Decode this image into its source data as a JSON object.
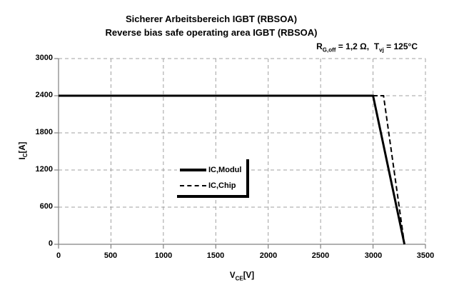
{
  "chart_data": {
    "type": "line",
    "title": "Sicherer Arbeitsbereich IGBT (RBSOA)",
    "subtitle": "Reverse bias safe operating area IGBT (RBSOA)",
    "annotation": "R G,off = 1,2 Ω,  T vj = 125°C",
    "xlabel": {
      "base": "V",
      "sub": "CE",
      "unit": "[V]"
    },
    "ylabel": {
      "base": "I",
      "sub": "C",
      "unit": "[A]"
    },
    "xlim": [
      0,
      3500
    ],
    "ylim": [
      0,
      3000
    ],
    "x_ticks": [
      0,
      500,
      1000,
      1500,
      2000,
      2500,
      3000,
      3500
    ],
    "y_ticks": [
      0,
      600,
      1200,
      1800,
      2400,
      3000
    ],
    "grid": "dashed",
    "legend_position": "center",
    "series": [
      {
        "name": "IC,Modul",
        "line_style": "solid",
        "line_width": 3,
        "color": "#000000",
        "points": [
          [
            0,
            2400
          ],
          [
            3000,
            2400
          ],
          [
            3300,
            0
          ]
        ]
      },
      {
        "name": "IC,Chip",
        "line_style": "dashed",
        "line_width": 2,
        "color": "#000000",
        "points": [
          [
            0,
            2400
          ],
          [
            3100,
            2400
          ],
          [
            3300,
            0
          ]
        ]
      }
    ]
  },
  "conditions": {
    "rg": {
      "base": "R",
      "sub": "G,off"
    },
    "rg_value": " = 1,2 ",
    "omega": "Ω",
    "sep": ",  ",
    "tvj": {
      "base": "T",
      "sub": "vj"
    },
    "tvj_value": " = 125°C"
  },
  "colors": {
    "background": "#ffffff",
    "grid": "#a0a0a0",
    "axis": "#808080",
    "curve": "#000000"
  }
}
